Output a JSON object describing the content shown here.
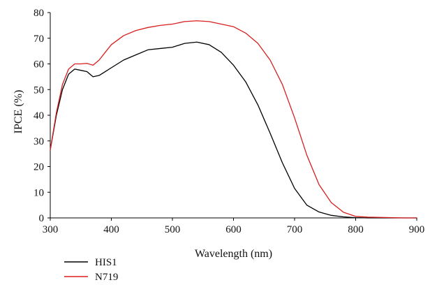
{
  "chart_data": {
    "type": "line",
    "title": "",
    "xlabel": "Wavelength (nm)",
    "ylabel": "IPCE (%)",
    "xlim": [
      300,
      900
    ],
    "ylim": [
      0,
      80
    ],
    "xticks": [
      300,
      400,
      500,
      600,
      700,
      800,
      900
    ],
    "yticks": [
      0,
      10,
      20,
      30,
      40,
      50,
      60,
      70,
      80
    ],
    "grid": false,
    "legend_position": "bottom-left",
    "series": [
      {
        "name": "HIS1",
        "color": "#000000",
        "x": [
          300,
          310,
          320,
          330,
          340,
          350,
          360,
          370,
          380,
          390,
          400,
          420,
          440,
          460,
          480,
          500,
          520,
          540,
          560,
          580,
          600,
          620,
          640,
          660,
          680,
          700,
          720,
          740,
          760,
          780,
          800,
          820,
          840,
          860,
          880,
          900
        ],
        "y": [
          26.5,
          40,
          50,
          56,
          58,
          57.5,
          57,
          55,
          55.5,
          57,
          58.5,
          61.5,
          63.5,
          65.5,
          66,
          66.5,
          68,
          68.5,
          67.5,
          64.5,
          59.5,
          53,
          44,
          33,
          21.5,
          11.5,
          5,
          2.3,
          1,
          0.4,
          0.1,
          0,
          0,
          0,
          0,
          0
        ]
      },
      {
        "name": "N719",
        "color": "#d81e1e",
        "x": [
          300,
          310,
          320,
          330,
          340,
          350,
          360,
          370,
          380,
          390,
          400,
          420,
          440,
          460,
          480,
          500,
          520,
          540,
          560,
          580,
          600,
          620,
          640,
          660,
          680,
          700,
          720,
          740,
          760,
          780,
          800,
          820,
          840,
          860,
          880,
          900
        ],
        "y": [
          26.5,
          41,
          52,
          58,
          60,
          60,
          60.2,
          59.5,
          61.5,
          64.5,
          67.5,
          71,
          73,
          74.2,
          75,
          75.5,
          76.5,
          76.8,
          76.5,
          75.5,
          74.5,
          72,
          68,
          61.5,
          52,
          39,
          24.5,
          13,
          6,
          2.2,
          0.6,
          0.3,
          0.2,
          0.1,
          0,
          0
        ]
      }
    ]
  }
}
